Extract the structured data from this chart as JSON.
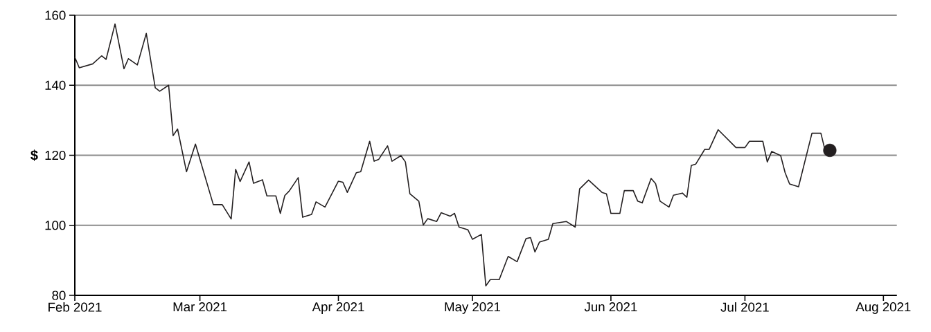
{
  "chart_data": {
    "type": "line",
    "ylabel": "$",
    "grid": "y",
    "x": [
      "2021-02-01",
      "2021-02-02",
      "2021-02-05",
      "2021-02-07",
      "2021-02-08",
      "2021-02-10",
      "2021-02-12",
      "2021-02-13",
      "2021-02-15",
      "2021-02-17",
      "2021-02-19",
      "2021-02-20",
      "2021-02-22",
      "2021-02-23",
      "2021-02-24",
      "2021-02-26",
      "2021-02-28",
      "2021-03-04",
      "2021-03-06",
      "2021-03-08",
      "2021-03-09",
      "2021-03-10",
      "2021-03-12",
      "2021-03-13",
      "2021-03-15",
      "2021-03-16",
      "2021-03-18",
      "2021-03-19",
      "2021-03-20",
      "2021-03-21",
      "2021-03-23",
      "2021-03-24",
      "2021-03-26",
      "2021-03-27",
      "2021-03-29",
      "2021-04-01",
      "2021-04-02",
      "2021-04-03",
      "2021-04-05",
      "2021-04-06",
      "2021-04-08",
      "2021-04-09",
      "2021-04-10",
      "2021-04-12",
      "2021-04-13",
      "2021-04-15",
      "2021-04-16",
      "2021-04-17",
      "2021-04-19",
      "2021-04-20",
      "2021-04-21",
      "2021-04-23",
      "2021-04-24",
      "2021-04-26",
      "2021-04-27",
      "2021-04-28",
      "2021-04-30",
      "2021-05-01",
      "2021-05-03",
      "2021-05-04",
      "2021-05-05",
      "2021-05-07",
      "2021-05-09",
      "2021-05-11",
      "2021-05-13",
      "2021-05-14",
      "2021-05-15",
      "2021-05-16",
      "2021-05-18",
      "2021-05-19",
      "2021-05-22",
      "2021-05-24",
      "2021-05-25",
      "2021-05-27",
      "2021-05-30",
      "2021-05-31",
      "2021-06-01",
      "2021-06-03",
      "2021-06-04",
      "2021-06-06",
      "2021-06-07",
      "2021-06-08",
      "2021-06-10",
      "2021-06-11",
      "2021-06-12",
      "2021-06-14",
      "2021-06-15",
      "2021-06-17",
      "2021-06-18",
      "2021-06-19",
      "2021-06-20",
      "2021-06-22",
      "2021-06-23",
      "2021-06-25",
      "2021-06-29",
      "2021-07-01",
      "2021-07-02",
      "2021-07-05",
      "2021-07-06",
      "2021-07-07",
      "2021-07-09",
      "2021-07-10",
      "2021-07-11",
      "2021-07-13",
      "2021-07-16",
      "2021-07-18",
      "2021-07-19",
      "2021-07-20"
    ],
    "series": [
      {
        "color": "#231f20",
        "marker": "none",
        "values": [
          148,
          145,
          146.1,
          148.4,
          147.4,
          157.5,
          144.7,
          147.6,
          145.8,
          154.8,
          139.3,
          138.3,
          140.0,
          125.6,
          127.5,
          115.3,
          123.2,
          105.9,
          105.9,
          101.8,
          116.0,
          112.5,
          118.1,
          112.0,
          113.0,
          108.4,
          108.4,
          103.4,
          108.5,
          109.8,
          113.6,
          102.3,
          103.1,
          106.7,
          105.2,
          112.6,
          112.3,
          109.4,
          115.0,
          115.3,
          124.0,
          118.3,
          118.8,
          122.7,
          118.3,
          119.9,
          118.1,
          109.0,
          106.9,
          100.1,
          101.9,
          101.1,
          103.6,
          102.6,
          103.4,
          99.5,
          98.7,
          96.0,
          97.4,
          82.7,
          84.5,
          84.5,
          91.1,
          89.6,
          96.2,
          96.5,
          92.4,
          95.2,
          96.0,
          100.5,
          101.1,
          99.5,
          110.4,
          112.9,
          109.4,
          109.0,
          103.4,
          103.4,
          109.9,
          109.9,
          106.9,
          106.4,
          113.4,
          111.9,
          106.9,
          105.2,
          108.6,
          109.2,
          108.0,
          117.1,
          117.5,
          121.7,
          121.7,
          127.3,
          122.2,
          122.2,
          124.0,
          124.0,
          118.1,
          121.1,
          119.9,
          115.0,
          111.8,
          111.0,
          126.3,
          126.3,
          121.1,
          121.4
        ]
      },
      {
        "type": "scatter",
        "color": "#231f20",
        "marker": "circle",
        "x": [
          "2021-07-20"
        ],
        "values": [
          121.4
        ]
      }
    ],
    "xlim": [
      "2021-02-01",
      "2021-08-04"
    ],
    "xticks": [
      {
        "value": "2021-02-01",
        "label": "Feb 2021"
      },
      {
        "value": "2021-03-01",
        "label": "Mar 2021"
      },
      {
        "value": "2021-04-01",
        "label": "Apr 2021"
      },
      {
        "value": "2021-05-01",
        "label": "May 2021"
      },
      {
        "value": "2021-06-01",
        "label": "Jun 2021"
      },
      {
        "value": "2021-07-01",
        "label": "Jul 2021"
      },
      {
        "value": "2021-08-01",
        "label": "Aug 2021"
      }
    ],
    "ylim": [
      80,
      160
    ],
    "yticks": [
      80,
      100,
      120,
      140,
      160
    ]
  }
}
